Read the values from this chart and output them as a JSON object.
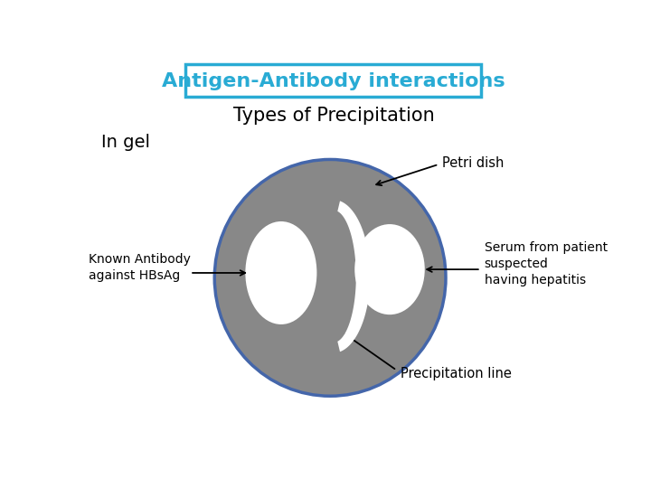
{
  "title": "Antigen-Antibody interactions",
  "subtitle": "Types of Precipitation",
  "label_ingel": "In gel",
  "label_petri": "Petri dish",
  "label_antibody": "Known Antibody\nagainst HBsAg",
  "label_serum": "Serum from patient\nsuspected\nhaving hepatitis",
  "label_precip": "Precipitation line",
  "title_color": "#29ABD4",
  "bg_color": "#FFFFFF",
  "dish_fill": "#888888",
  "dish_border": "#4466AA",
  "well_fill": "#FFFFFF"
}
